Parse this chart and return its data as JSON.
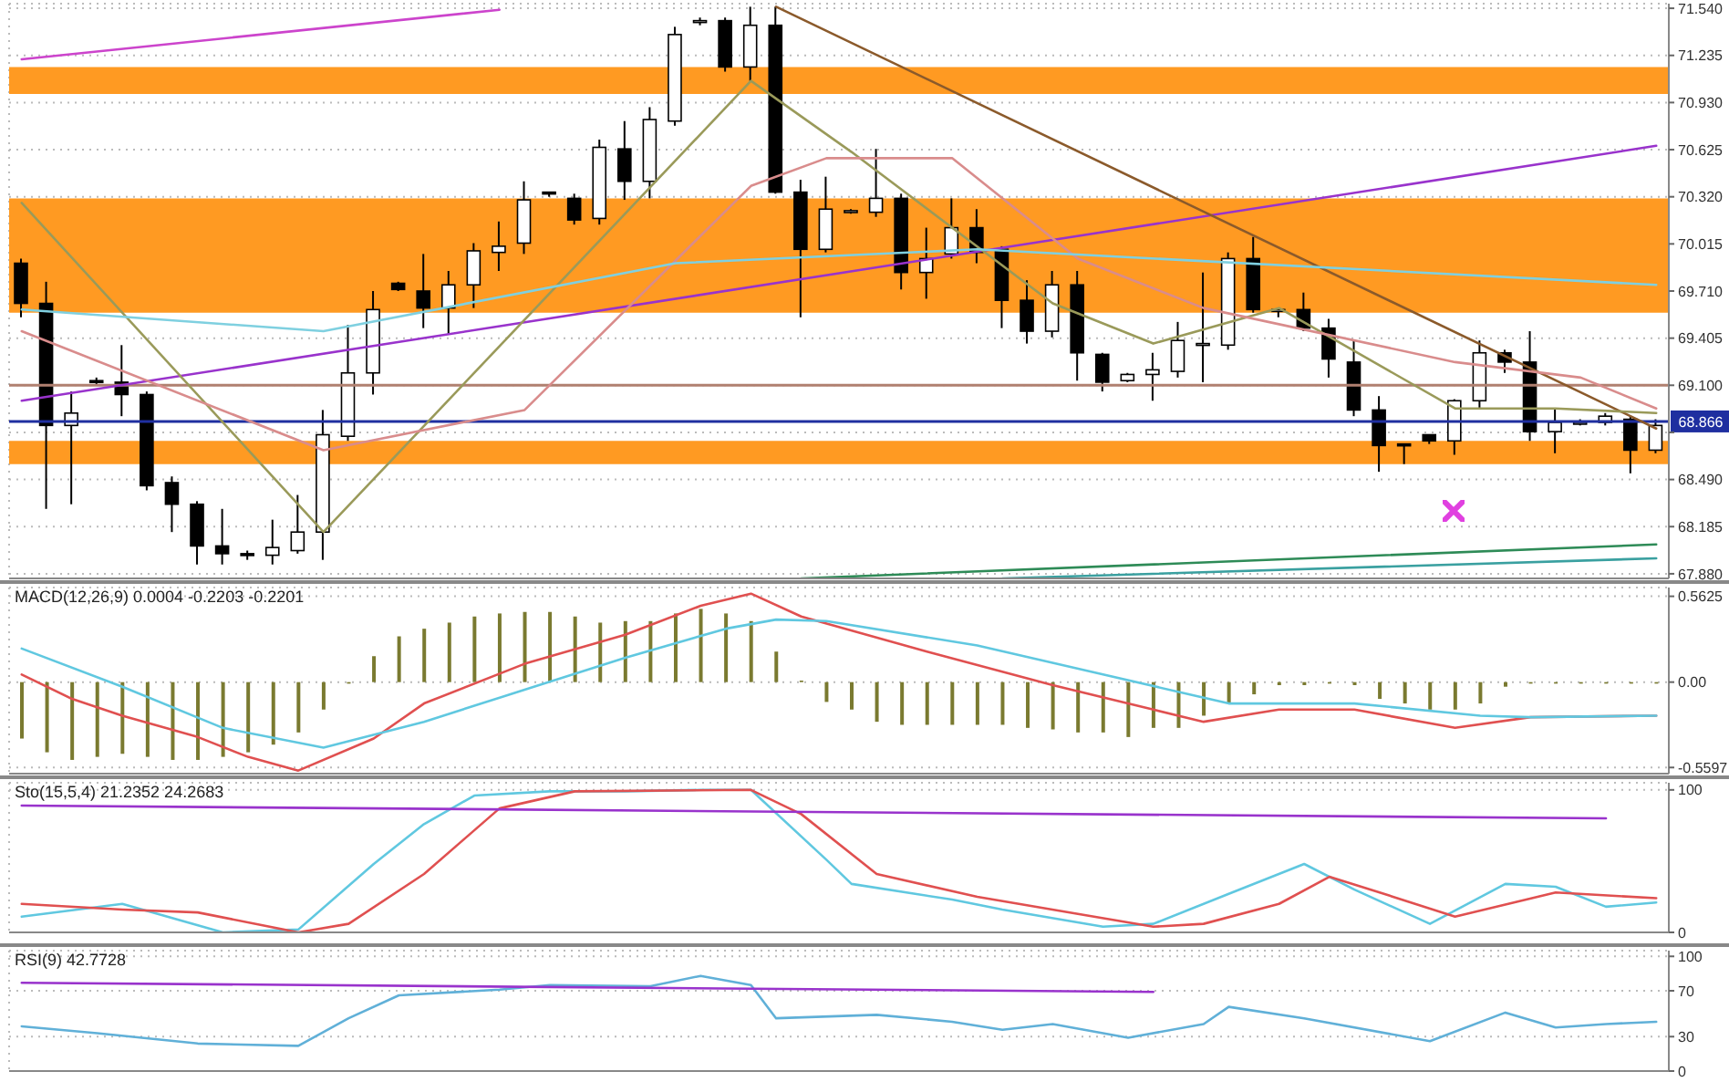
{
  "chart_data": [
    {
      "type": "candlestick",
      "categories": [
        null,
        null,
        null,
        null,
        null,
        null,
        null,
        null,
        null,
        null,
        null,
        null,
        null,
        null,
        null,
        null,
        null,
        null,
        null,
        null,
        null,
        null,
        null,
        null,
        null,
        null,
        null,
        null,
        null,
        null,
        null,
        null,
        null,
        null,
        null,
        null,
        null,
        null,
        null,
        null,
        null,
        null,
        null,
        null,
        null,
        null,
        null,
        null,
        null,
        null,
        null,
        null,
        null,
        null,
        null,
        null,
        null,
        null,
        null,
        null,
        null,
        null,
        null,
        null,
        null,
        null
      ],
      "ohlc": [
        [
          69.89,
          69.92,
          69.54,
          69.63
        ],
        [
          69.63,
          69.77,
          68.3,
          68.84
        ],
        [
          68.84,
          69.06,
          68.33,
          68.92
        ],
        [
          69.13,
          69.15,
          69.1,
          69.12
        ],
        [
          69.12,
          69.36,
          68.9,
          69.04
        ],
        [
          69.04,
          69.06,
          68.42,
          68.45
        ],
        [
          68.47,
          68.51,
          68.15,
          68.33
        ],
        [
          68.33,
          68.35,
          67.94,
          68.06
        ],
        [
          68.06,
          68.3,
          67.94,
          68.01
        ],
        [
          68.01,
          68.03,
          67.97,
          68.0
        ],
        [
          68.0,
          68.23,
          67.94,
          68.05
        ],
        [
          68.03,
          68.39,
          68.01,
          68.15
        ],
        [
          68.15,
          68.94,
          67.97,
          68.78
        ],
        [
          68.77,
          69.49,
          68.74,
          69.18
        ],
        [
          69.18,
          69.71,
          69.04,
          69.59
        ],
        [
          69.76,
          69.77,
          69.71,
          69.72
        ],
        [
          69.71,
          69.95,
          69.47,
          69.6
        ],
        [
          69.6,
          69.84,
          69.43,
          69.75
        ],
        [
          69.75,
          70.02,
          69.6,
          69.97
        ],
        [
          69.96,
          70.16,
          69.84,
          70.0
        ],
        [
          70.02,
          70.42,
          69.95,
          70.3
        ],
        [
          70.35,
          70.35,
          70.32,
          70.34
        ],
        [
          70.31,
          70.34,
          70.14,
          70.17
        ],
        [
          70.18,
          70.69,
          70.14,
          70.64
        ],
        [
          70.63,
          70.81,
          70.3,
          70.42
        ],
        [
          70.42,
          70.9,
          70.31,
          70.82
        ],
        [
          70.81,
          71.42,
          70.78,
          71.37
        ],
        [
          71.46,
          71.48,
          71.43,
          71.46
        ],
        [
          71.46,
          71.48,
          71.13,
          71.16
        ],
        [
          71.16,
          71.55,
          71.07,
          71.43
        ],
        [
          71.43,
          71.55,
          70.34,
          70.35
        ],
        [
          70.35,
          70.43,
          69.54,
          69.98
        ],
        [
          69.98,
          70.45,
          69.96,
          70.24
        ],
        [
          70.22,
          70.24,
          70.21,
          70.23
        ],
        [
          70.22,
          70.63,
          70.19,
          70.31
        ],
        [
          70.31,
          70.34,
          69.72,
          69.83
        ],
        [
          69.83,
          70.12,
          69.66,
          69.92
        ],
        [
          69.95,
          70.31,
          69.92,
          70.12
        ],
        [
          70.12,
          70.24,
          69.89,
          69.96
        ],
        [
          69.98,
          70.0,
          69.47,
          69.65
        ],
        [
          69.65,
          69.78,
          69.37,
          69.45
        ],
        [
          69.45,
          69.84,
          69.41,
          69.75
        ],
        [
          69.75,
          69.84,
          69.13,
          69.31
        ],
        [
          69.3,
          69.31,
          69.06,
          69.12
        ],
        [
          69.13,
          69.18,
          69.12,
          69.17
        ],
        [
          69.17,
          69.31,
          69.0,
          69.2
        ],
        [
          69.19,
          69.51,
          69.15,
          69.39
        ],
        [
          69.37,
          69.83,
          69.12,
          69.37
        ],
        [
          69.36,
          69.96,
          69.33,
          69.92
        ],
        [
          69.92,
          70.06,
          69.57,
          69.59
        ],
        [
          69.59,
          69.6,
          69.54,
          69.59
        ],
        [
          69.59,
          69.7,
          69.45,
          69.47
        ],
        [
          69.47,
          69.53,
          69.15,
          69.27
        ],
        [
          69.25,
          69.39,
          68.9,
          68.94
        ],
        [
          68.94,
          69.03,
          68.54,
          68.71
        ],
        [
          68.72,
          68.72,
          68.59,
          68.71
        ],
        [
          68.78,
          68.78,
          68.72,
          68.74
        ],
        [
          68.74,
          69.01,
          68.65,
          69.0
        ],
        [
          69.0,
          69.39,
          68.95,
          69.31
        ],
        [
          69.31,
          69.33,
          69.18,
          69.25
        ],
        [
          69.25,
          69.45,
          68.74,
          68.8
        ],
        [
          68.8,
          68.95,
          68.66,
          68.86
        ],
        [
          68.86,
          68.88,
          68.84,
          68.86
        ],
        [
          68.86,
          68.92,
          68.84,
          68.9
        ],
        [
          68.88,
          68.9,
          68.53,
          68.68
        ],
        [
          68.68,
          68.88,
          68.66,
          68.84
        ]
      ],
      "series": [
        {
          "type": "line",
          "color": "#cc44cc",
          "values": [
            71.21,
            null,
            null,
            null,
            null,
            null,
            null,
            null,
            null,
            null,
            null,
            null,
            null,
            null,
            null,
            null,
            null,
            null,
            null,
            71.53,
            null,
            null,
            null,
            null,
            null,
            null,
            null,
            null,
            null,
            null,
            null,
            null,
            null,
            null,
            null,
            null,
            null,
            null,
            null,
            null,
            null,
            null,
            null,
            null,
            null,
            null,
            null,
            null,
            null,
            null,
            null,
            null,
            null,
            null,
            null,
            null,
            null,
            null,
            null,
            null,
            null,
            null,
            null,
            null,
            null,
            null
          ]
        },
        {
          "type": "line",
          "color": "#9933cc",
          "values": [
            69.0,
            null,
            null,
            null,
            null,
            null,
            null,
            null,
            null,
            null,
            null,
            null,
            null,
            null,
            null,
            null,
            null,
            null,
            null,
            null,
            null,
            null,
            null,
            null,
            null,
            null,
            null,
            null,
            null,
            null,
            null,
            null,
            null,
            null,
            null,
            null,
            null,
            null,
            null,
            null,
            null,
            null,
            null,
            null,
            null,
            null,
            null,
            null,
            null,
            null,
            null,
            null,
            null,
            null,
            null,
            null,
            null,
            null,
            null,
            null,
            null,
            null,
            null,
            null,
            null,
            70.65
          ]
        },
        {
          "type": "line",
          "color": "#8b5a2b",
          "values": [
            null,
            null,
            null,
            null,
            null,
            null,
            null,
            null,
            null,
            null,
            null,
            null,
            null,
            null,
            null,
            null,
            null,
            null,
            null,
            null,
            null,
            null,
            null,
            null,
            null,
            null,
            null,
            null,
            null,
            null,
            71.55,
            null,
            null,
            null,
            null,
            null,
            null,
            null,
            null,
            null,
            null,
            null,
            null,
            null,
            null,
            null,
            null,
            null,
            null,
            null,
            null,
            null,
            null,
            null,
            null,
            null,
            null,
            null,
            null,
            null,
            null,
            null,
            null,
            null,
            null,
            68.82
          ]
        },
        {
          "type": "line",
          "color": "#2e8b57",
          "values": [
            null,
            null,
            null,
            null,
            null,
            null,
            null,
            null,
            null,
            null,
            null,
            null,
            null,
            null,
            null,
            null,
            null,
            null,
            null,
            null,
            null,
            null,
            null,
            null,
            null,
            null,
            null,
            null,
            null,
            null,
            null,
            67.85,
            null,
            null,
            null,
            null,
            null,
            null,
            null,
            null,
            null,
            null,
            null,
            null,
            null,
            null,
            null,
            null,
            null,
            null,
            null,
            null,
            null,
            null,
            null,
            null,
            null,
            null,
            null,
            null,
            null,
            null,
            null,
            null,
            null,
            68.07
          ]
        },
        {
          "type": "line",
          "color": "#3aa0a0",
          "values": [
            null,
            null,
            null,
            null,
            null,
            null,
            null,
            null,
            null,
            null,
            null,
            null,
            null,
            null,
            null,
            null,
            null,
            null,
            null,
            null,
            null,
            null,
            null,
            null,
            null,
            null,
            null,
            null,
            null,
            null,
            null,
            null,
            null,
            null,
            null,
            null,
            null,
            null,
            null,
            67.85,
            null,
            null,
            null,
            null,
            null,
            null,
            null,
            null,
            null,
            null,
            null,
            null,
            null,
            null,
            null,
            null,
            null,
            null,
            null,
            null,
            null,
            null,
            null,
            null,
            null,
            67.98
          ]
        },
        {
          "type": "line",
          "color": "#9a9a5a",
          "values": [
            70.28,
            null,
            null,
            null,
            null,
            null,
            null,
            null,
            null,
            null,
            null,
            null,
            68.15,
            null,
            null,
            null,
            null,
            null,
            null,
            null,
            null,
            null,
            null,
            null,
            null,
            null,
            null,
            null,
            null,
            71.07,
            null,
            null,
            null,
            70.61,
            null,
            null,
            null,
            null,
            null,
            null,
            null,
            69.63,
            null,
            null,
            null,
            69.37,
            null,
            null,
            null,
            null,
            69.6,
            null,
            null,
            null,
            null,
            null,
            null,
            68.95,
            null,
            null,
            null,
            68.95,
            null,
            null,
            null,
            68.92
          ]
        },
        {
          "type": "line",
          "color": "#d98c8c",
          "values": [
            69.45,
            null,
            null,
            null,
            null,
            null,
            null,
            null,
            null,
            null,
            null,
            null,
            68.68,
            null,
            null,
            null,
            null,
            null,
            null,
            null,
            68.94,
            null,
            null,
            null,
            null,
            null,
            null,
            null,
            null,
            70.39,
            null,
            null,
            70.57,
            null,
            null,
            null,
            null,
            70.57,
            null,
            null,
            null,
            null,
            69.92,
            null,
            null,
            null,
            null,
            69.6,
            null,
            null,
            null,
            null,
            null,
            null,
            null,
            null,
            null,
            69.25,
            null,
            null,
            null,
            null,
            69.15,
            null,
            null,
            68.95
          ]
        },
        {
          "type": "line",
          "color": "#7fd0e0",
          "values": [
            69.59,
            null,
            null,
            null,
            null,
            null,
            null,
            null,
            null,
            null,
            null,
            null,
            69.45,
            null,
            null,
            null,
            null,
            null,
            null,
            null,
            null,
            null,
            null,
            null,
            null,
            null,
            69.89,
            null,
            null,
            null,
            null,
            null,
            null,
            null,
            null,
            null,
            null,
            null,
            69.98,
            null,
            null,
            null,
            null,
            null,
            null,
            null,
            null,
            null,
            null,
            null,
            null,
            null,
            null,
            null,
            null,
            null,
            null,
            null,
            null,
            null,
            null,
            null,
            null,
            null,
            null,
            69.75
          ]
        }
      ],
      "bands": [
        {
          "axis": "y",
          "from": 70.985,
          "to": 71.16,
          "color": "#ff9a22"
        },
        {
          "axis": "y",
          "from": 69.57,
          "to": 70.31,
          "color": "#ff9a22"
        },
        {
          "axis": "y",
          "from": 68.59,
          "to": 68.74,
          "color": "#ff9a22"
        }
      ],
      "ref_lines": [
        {
          "axis": "y",
          "value": 69.1,
          "color": "#b08070"
        },
        {
          "axis": "y",
          "value": 68.866,
          "label": "68.866",
          "color": "#1f2fa0"
        }
      ],
      "ylim": [
        67.85,
        71.57
      ],
      "yticks": [
        {
          "value": 71.54,
          "label": "71.540"
        },
        {
          "value": 71.235,
          "label": "71.235"
        },
        {
          "value": 70.93,
          "label": "70.930"
        },
        {
          "value": 70.625,
          "label": "70.625"
        },
        {
          "value": 70.32,
          "label": "70.320"
        },
        {
          "value": 70.015,
          "label": "70.015"
        },
        {
          "value": 69.71,
          "label": "69.710"
        },
        {
          "value": 69.405,
          "label": "69.405"
        },
        {
          "value": 69.1,
          "label": "69.100"
        },
        {
          "value": 68.795,
          "label": null
        },
        {
          "value": 68.49,
          "label": "68.490"
        },
        {
          "value": 68.185,
          "label": "68.185"
        },
        {
          "value": 67.88,
          "label": "67.880"
        }
      ],
      "grid": true,
      "tick_labels": "y"
    },
    {
      "type": "bar",
      "title": "MACD(12,26,9) 0.0004 -0.2203 -0.2201",
      "categories": [
        null,
        null,
        null,
        null,
        null,
        null,
        null,
        null,
        null,
        null,
        null,
        null,
        null,
        null,
        null,
        null,
        null,
        null,
        null,
        null,
        null,
        null,
        null,
        null,
        null,
        null,
        null,
        null,
        null,
        null,
        null,
        null,
        null,
        null,
        null,
        null,
        null,
        null,
        null,
        null,
        null,
        null,
        null,
        null,
        null,
        null,
        null,
        null,
        null,
        null,
        null,
        null,
        null,
        null,
        null,
        null,
        null,
        null,
        null,
        null,
        null,
        null,
        null,
        null,
        null,
        null
      ],
      "series": [
        {
          "type": "bar",
          "color": "#7a7a30",
          "values": [
            -0.37,
            -0.46,
            -0.51,
            -0.49,
            -0.47,
            -0.49,
            -0.51,
            -0.51,
            -0.49,
            -0.46,
            -0.41,
            -0.33,
            -0.18,
            -0.01,
            0.17,
            0.3,
            0.35,
            0.39,
            0.43,
            0.45,
            0.46,
            0.46,
            0.43,
            0.39,
            0.4,
            0.4,
            0.45,
            0.48,
            0.45,
            0.4,
            0.2,
            0.01,
            -0.13,
            -0.18,
            -0.26,
            -0.28,
            -0.28,
            -0.28,
            -0.28,
            -0.28,
            -0.3,
            -0.31,
            -0.33,
            -0.33,
            -0.36,
            -0.3,
            -0.3,
            -0.22,
            -0.14,
            -0.08,
            -0.02,
            -0.02,
            -0.01,
            -0.02,
            -0.11,
            -0.14,
            -0.18,
            -0.18,
            -0.14,
            -0.03,
            -0.01,
            -0.01,
            -0.01,
            -0.01,
            -0.01,
            -0.01
          ]
        },
        {
          "type": "line",
          "color": "#e05050",
          "values": [
            0.05,
            null,
            -0.11,
            null,
            -0.22,
            null,
            null,
            -0.36,
            null,
            -0.49,
            null,
            -0.58,
            null,
            null,
            -0.37,
            null,
            -0.14,
            null,
            null,
            null,
            0.12,
            null,
            null,
            null,
            0.31,
            null,
            null,
            0.5,
            null,
            0.58,
            null,
            0.43,
            null,
            null,
            null,
            null,
            0.2,
            null,
            null,
            null,
            null,
            -0.02,
            null,
            null,
            null,
            -0.18,
            null,
            -0.26,
            null,
            null,
            -0.18,
            null,
            null,
            -0.18,
            null,
            null,
            null,
            -0.3,
            null,
            null,
            -0.23,
            null,
            null,
            null,
            null,
            -0.22
          ]
        },
        {
          "type": "line",
          "color": "#60c8e0",
          "values": [
            0.22,
            null,
            null,
            null,
            -0.03,
            null,
            null,
            null,
            -0.3,
            null,
            null,
            null,
            -0.43,
            null,
            null,
            null,
            -0.26,
            null,
            null,
            null,
            -0.05,
            null,
            null,
            null,
            0.16,
            null,
            null,
            null,
            0.35,
            null,
            0.41,
            null,
            0.4,
            null,
            null,
            null,
            null,
            null,
            0.24,
            null,
            null,
            null,
            null,
            0.05,
            null,
            null,
            null,
            null,
            -0.14,
            null,
            null,
            null,
            null,
            -0.14,
            null,
            null,
            null,
            null,
            -0.22,
            null,
            -0.23,
            null,
            null,
            null,
            null,
            -0.22
          ]
        }
      ],
      "ylim": [
        -0.6,
        0.62
      ],
      "yticks": [
        0.5625,
        {
          "value": 0,
          "label": "0.00"
        },
        -0.5597
      ],
      "grid": true,
      "tick_labels": "y"
    },
    {
      "type": "line",
      "title": "Sto(15,5,4) 21.2352 24.2683",
      "categories": [
        null,
        null,
        null,
        null,
        null,
        null,
        null,
        null,
        null,
        null,
        null,
        null,
        null,
        null,
        null,
        null,
        null,
        null,
        null,
        null,
        null,
        null,
        null,
        null,
        null,
        null,
        null,
        null,
        null,
        null,
        null,
        null,
        null,
        null,
        null,
        null,
        null,
        null,
        null,
        null,
        null,
        null,
        null,
        null,
        null,
        null,
        null,
        null,
        null,
        null,
        null,
        null,
        null,
        null,
        null,
        null,
        null,
        null,
        null,
        null,
        null,
        null,
        null,
        null,
        null,
        null
      ],
      "series": [
        {
          "type": "line",
          "color": "#60c8e0",
          "values": [
            11,
            null,
            null,
            null,
            20,
            null,
            null,
            null,
            0,
            null,
            null,
            2,
            null,
            null,
            48,
            null,
            76,
            null,
            96,
            null,
            null,
            99,
            null,
            null,
            99,
            null,
            null,
            100,
            null,
            100,
            null,
            null,
            51,
            34,
            null,
            null,
            null,
            23,
            null,
            16,
            null,
            null,
            null,
            4,
            null,
            6,
            null,
            null,
            27,
            null,
            null,
            48,
            null,
            30,
            null,
            null,
            6,
            null,
            null,
            34,
            null,
            32,
            null,
            18,
            null,
            21
          ]
        },
        {
          "type": "line",
          "color": "#e05050",
          "values": [
            20,
            null,
            null,
            null,
            16,
            null,
            null,
            14,
            null,
            null,
            null,
            0,
            null,
            6,
            null,
            null,
            41,
            null,
            null,
            87,
            null,
            null,
            99,
            null,
            null,
            null,
            null,
            null,
            null,
            100,
            null,
            83,
            null,
            null,
            41,
            null,
            null,
            null,
            25,
            null,
            null,
            null,
            13,
            null,
            null,
            4,
            null,
            6,
            null,
            null,
            20,
            null,
            39,
            null,
            28,
            null,
            null,
            11,
            null,
            null,
            null,
            28,
            null,
            null,
            null,
            24
          ]
        },
        {
          "type": "line",
          "color": "#9933cc",
          "values": [
            89,
            null,
            null,
            null,
            null,
            null,
            null,
            null,
            null,
            null,
            null,
            null,
            null,
            null,
            null,
            null,
            null,
            null,
            null,
            null,
            null,
            null,
            null,
            null,
            null,
            null,
            null,
            null,
            null,
            null,
            null,
            null,
            null,
            null,
            null,
            null,
            null,
            null,
            null,
            null,
            null,
            null,
            null,
            null,
            null,
            null,
            null,
            null,
            null,
            null,
            null,
            null,
            null,
            null,
            null,
            null,
            null,
            null,
            null,
            null,
            null,
            null,
            null,
            80,
            null,
            null
          ]
        }
      ],
      "ylim": [
        0,
        105
      ],
      "yticks": [
        0,
        100
      ],
      "grid": true,
      "tick_labels": "y"
    },
    {
      "type": "line",
      "title": "RSI(9) 42.7728",
      "categories": [
        null,
        null,
        null,
        null,
        null,
        null,
        null,
        null,
        null,
        null,
        null,
        null,
        null,
        null,
        null,
        null,
        null,
        null,
        null,
        null,
        null,
        null,
        null,
        null,
        null,
        null,
        null,
        null,
        null,
        null,
        null,
        null,
        null,
        null,
        null,
        null,
        null,
        null,
        null,
        null,
        null,
        null,
        null,
        null,
        null,
        null,
        null,
        null,
        null,
        null,
        null,
        null,
        null,
        null,
        null,
        null,
        null,
        null,
        null,
        null,
        null,
        null,
        null,
        null,
        null,
        null
      ],
      "series": [
        {
          "type": "line",
          "color": "#60b0d8",
          "values": [
            39,
            null,
            null,
            33,
            null,
            null,
            null,
            24,
            null,
            null,
            null,
            22,
            null,
            46,
            null,
            66,
            null,
            null,
            null,
            71,
            null,
            75,
            null,
            null,
            null,
            74,
            null,
            83,
            null,
            75,
            46,
            null,
            null,
            null,
            49,
            null,
            null,
            43,
            null,
            36,
            null,
            41,
            null,
            null,
            29,
            null,
            null,
            41,
            56,
            null,
            null,
            46,
            null,
            null,
            null,
            null,
            26,
            null,
            null,
            51,
            null,
            38,
            null,
            41,
            null,
            43
          ]
        },
        {
          "type": "line",
          "color": "#9933cc",
          "values": [
            77,
            null,
            null,
            null,
            null,
            null,
            null,
            null,
            null,
            null,
            null,
            null,
            null,
            null,
            null,
            null,
            null,
            null,
            null,
            null,
            null,
            null,
            null,
            null,
            null,
            null,
            null,
            null,
            null,
            null,
            null,
            null,
            null,
            null,
            null,
            null,
            null,
            null,
            null,
            null,
            null,
            null,
            null,
            null,
            null,
            69,
            null,
            null,
            null,
            null,
            null,
            null,
            null,
            null,
            null,
            null,
            null,
            null,
            null,
            null,
            null,
            null,
            null,
            null,
            null,
            null
          ]
        }
      ],
      "ylim": [
        0,
        105
      ],
      "yticks": [
        100,
        70,
        30,
        0
      ],
      "grid": true,
      "tick_labels": "y"
    }
  ]
}
